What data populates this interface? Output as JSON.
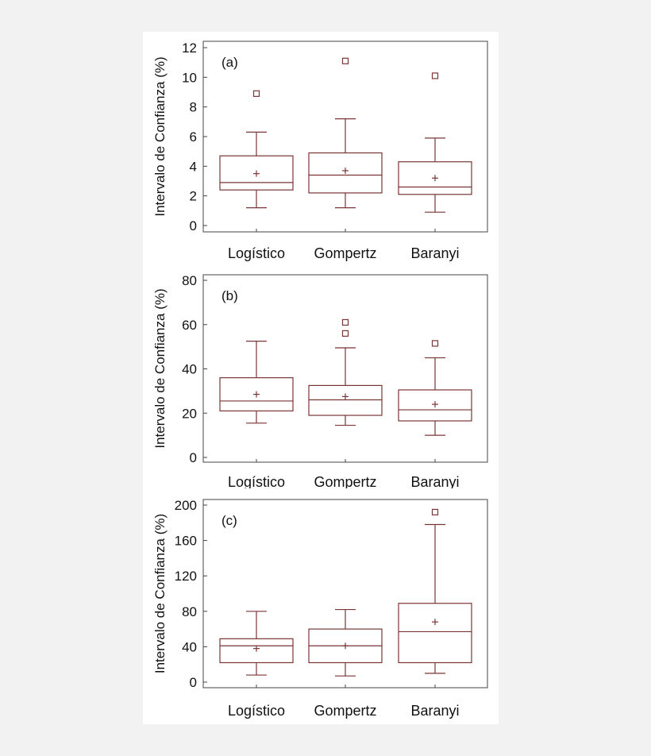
{
  "colors": {
    "box": "#7a3535",
    "page": "#f2f2f2",
    "panel": "#ffffff",
    "text": "#111111"
  },
  "chart_data": [
    {
      "type": "box",
      "panel_label": "(a)",
      "ylabel": "Intervalo de Confianza (%)",
      "ylim": [
        0,
        12
      ],
      "yticks": [
        0,
        2,
        4,
        6,
        8,
        10,
        12
      ],
      "categories": [
        "Logístico",
        "Gompertz",
        "Baranyi"
      ],
      "boxes": [
        {
          "whisker_low": 1.2,
          "q1": 2.4,
          "median": 2.9,
          "q3": 4.7,
          "whisker_high": 6.3,
          "mean": 3.5,
          "outliers": [
            8.9
          ]
        },
        {
          "whisker_low": 1.2,
          "q1": 2.2,
          "median": 3.4,
          "q3": 4.9,
          "whisker_high": 7.2,
          "mean": 3.7,
          "outliers": [
            11.1
          ]
        },
        {
          "whisker_low": 0.9,
          "q1": 2.1,
          "median": 2.6,
          "q3": 4.3,
          "whisker_high": 5.9,
          "mean": 3.2,
          "outliers": [
            10.1
          ]
        }
      ]
    },
    {
      "type": "box",
      "panel_label": "(b)",
      "ylabel": "Intervalo de Confianza (%)",
      "ylim": [
        0,
        80
      ],
      "yticks": [
        0,
        20,
        40,
        60,
        80
      ],
      "categories": [
        "Logístico",
        "Gompertz",
        "Baranyi"
      ],
      "boxes": [
        {
          "whisker_low": 15.5,
          "q1": 21,
          "median": 25.5,
          "q3": 36,
          "whisker_high": 52.5,
          "mean": 28.5,
          "outliers": []
        },
        {
          "whisker_low": 14.5,
          "q1": 19,
          "median": 26,
          "q3": 32.5,
          "whisker_high": 49.5,
          "mean": 27.5,
          "outliers": [
            56,
            61
          ]
        },
        {
          "whisker_low": 10,
          "q1": 16.5,
          "median": 21.5,
          "q3": 30.5,
          "whisker_high": 45,
          "mean": 24,
          "outliers": [
            51.5
          ]
        }
      ]
    },
    {
      "type": "box",
      "panel_label": "(c)",
      "ylabel": "Intervalo de Confianza (%)",
      "ylim": [
        0,
        200
      ],
      "yticks": [
        0,
        40,
        80,
        120,
        160,
        200
      ],
      "categories": [
        "Logístico",
        "Gompertz",
        "Baranyi"
      ],
      "boxes": [
        {
          "whisker_low": 8,
          "q1": 22,
          "median": 41,
          "q3": 49,
          "whisker_high": 80,
          "mean": 38,
          "outliers": []
        },
        {
          "whisker_low": 7,
          "q1": 22,
          "median": 41,
          "q3": 60,
          "whisker_high": 82,
          "mean": 41,
          "outliers": []
        },
        {
          "whisker_low": 10,
          "q1": 22,
          "median": 57,
          "q3": 89,
          "whisker_high": 178,
          "mean": 68,
          "outliers": [
            192
          ]
        }
      ]
    }
  ]
}
